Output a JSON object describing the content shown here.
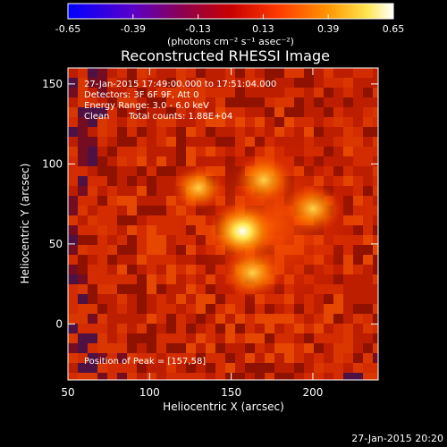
{
  "colorbar": {
    "tick_labels": [
      "-0.65",
      "-0.39",
      "-0.13",
      "0.13",
      "0.39",
      "0.65"
    ],
    "unit_label": "(photons cm⁻² s⁻¹ asec⁻²)",
    "range": [
      -0.65,
      0.65
    ]
  },
  "title": "Reconstructed RHESSI Image",
  "annotations": {
    "time_range": "27-Jan-2015 17:49:00.000 to 17:51:04.000",
    "detectors": "Detectors: 3F 6F 9F, Att 0",
    "energy": "Energy Range: 3.0 - 6.0 keV",
    "method": "Clean",
    "counts": "Total counts: 1.88E+04",
    "peak": "Position of Peak = [157,58]"
  },
  "axes": {
    "x_label": "Heliocentric X (arcsec)",
    "y_label": "Heliocentric Y (arcsec)",
    "x_ticks": [
      50,
      100,
      150,
      200
    ],
    "y_ticks": [
      0,
      50,
      100,
      150
    ],
    "x_range": [
      50,
      240
    ],
    "y_range": [
      -35,
      160
    ]
  },
  "footer": {
    "timestamp": "27-Jan-2015 20:20"
  },
  "image_data": {
    "peak_position": [
      157,
      58
    ],
    "sources": [
      {
        "x": 157,
        "y": 58,
        "intensity": 1.0
      },
      {
        "x": 163,
        "y": 32,
        "intensity": 0.75
      },
      {
        "x": 200,
        "y": 72,
        "intensity": 0.7
      },
      {
        "x": 170,
        "y": 90,
        "intensity": 0.72
      },
      {
        "x": 130,
        "y": 85,
        "intensity": 0.55
      }
    ]
  }
}
